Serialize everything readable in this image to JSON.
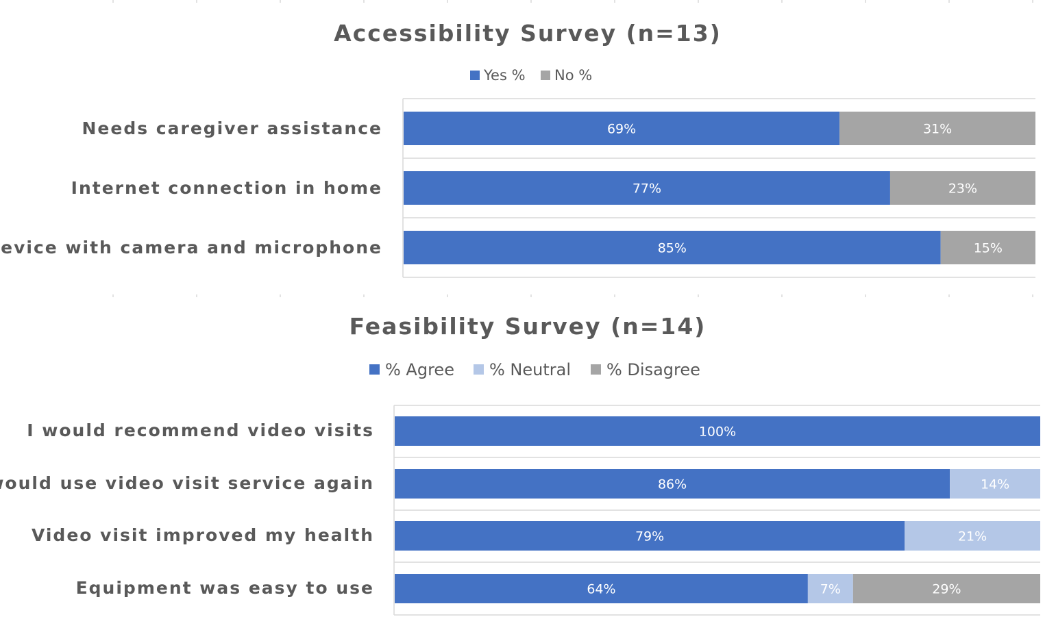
{
  "chart_data": [
    {
      "type": "bar",
      "orientation": "horizontal",
      "stacked": "percent",
      "title": "Accessibility Survey (n=13)",
      "legend_position": "top",
      "categories": [
        "Needs caregiver assistance",
        "Internet connection in home",
        "Device with camera and microphone"
      ],
      "series": [
        {
          "name": "Yes %",
          "color": "#4472c4",
          "values": [
            69,
            77,
            85
          ],
          "labels": [
            "69%",
            "77%",
            "85%"
          ]
        },
        {
          "name": "No %",
          "color": "#a5a5a5",
          "values": [
            31,
            23,
            15
          ],
          "labels": [
            "31%",
            "23%",
            "15%"
          ]
        }
      ],
      "xlim": [
        0,
        100
      ],
      "grid": true
    },
    {
      "type": "bar",
      "orientation": "horizontal",
      "stacked": "percent",
      "title": "Feasibility Survey (n=14)",
      "legend_position": "top",
      "categories": [
        "I would recommend video visits",
        "I would use video visit service again",
        "Video visit improved my health",
        "Equipment was easy to use"
      ],
      "series": [
        {
          "name": "% Agree",
          "color": "#4472c4",
          "values": [
            100,
            86,
            79,
            64
          ],
          "labels": [
            "100%",
            "86%",
            "79%",
            "64%"
          ]
        },
        {
          "name": "% Neutral",
          "color": "#b4c7e7",
          "values": [
            0,
            14,
            21,
            7
          ],
          "labels": [
            "",
            "14%",
            "21%",
            "7%"
          ]
        },
        {
          "name": "% Disagree",
          "color": "#a5a5a5",
          "values": [
            0,
            0,
            0,
            29
          ],
          "labels": [
            "",
            "",
            "",
            "29%"
          ]
        }
      ],
      "xlim": [
        0,
        100
      ],
      "grid": true
    }
  ]
}
